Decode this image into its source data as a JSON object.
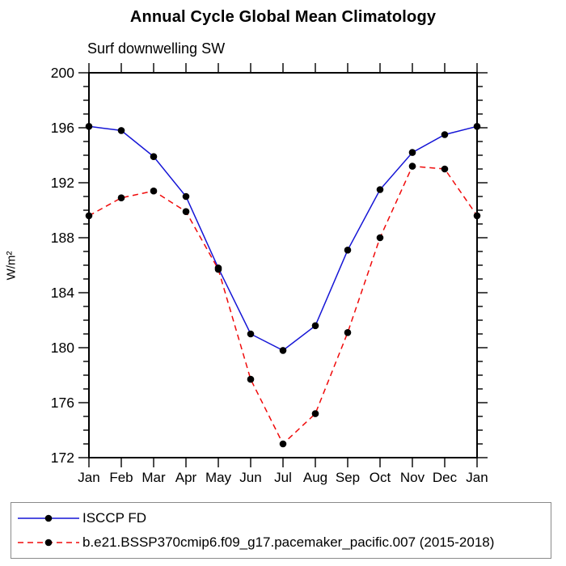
{
  "chart_data": {
    "type": "line",
    "title": "Annual Cycle Global Mean Climatology",
    "subtitle": "Surf downwelling SW",
    "ylabel": "W/m²",
    "x_categories": [
      "Jan",
      "Feb",
      "Mar",
      "Apr",
      "May",
      "Jun",
      "Jul",
      "Aug",
      "Sep",
      "Oct",
      "Nov",
      "Dec",
      "Jan"
    ],
    "ylim": [
      172,
      200
    ],
    "ytick_major": [
      172,
      176,
      180,
      184,
      188,
      192,
      196,
      200
    ],
    "ytick_minor_step": 1,
    "grid": false,
    "legend_position": "bottom-left-box",
    "axis_color": "#000000",
    "marker_color": "#000000",
    "series": [
      {
        "name": "ISCCP FD",
        "color": "#1515d6",
        "style": "solid",
        "marker": "circle",
        "values": [
          196.1,
          195.8,
          193.9,
          191.0,
          185.8,
          181.0,
          179.8,
          181.6,
          187.1,
          191.5,
          194.2,
          195.5,
          196.1
        ]
      },
      {
        "name": "b.e21.BSSP370cmip6.f09_g17.pacemaker_pacific.007 (2015-2018)",
        "color": "#f00a0a",
        "style": "dashed",
        "marker": "circle",
        "values": [
          189.6,
          190.9,
          191.4,
          189.9,
          185.7,
          177.7,
          173.0,
          175.2,
          181.1,
          188.0,
          193.2,
          193.0,
          189.6
        ]
      }
    ]
  }
}
